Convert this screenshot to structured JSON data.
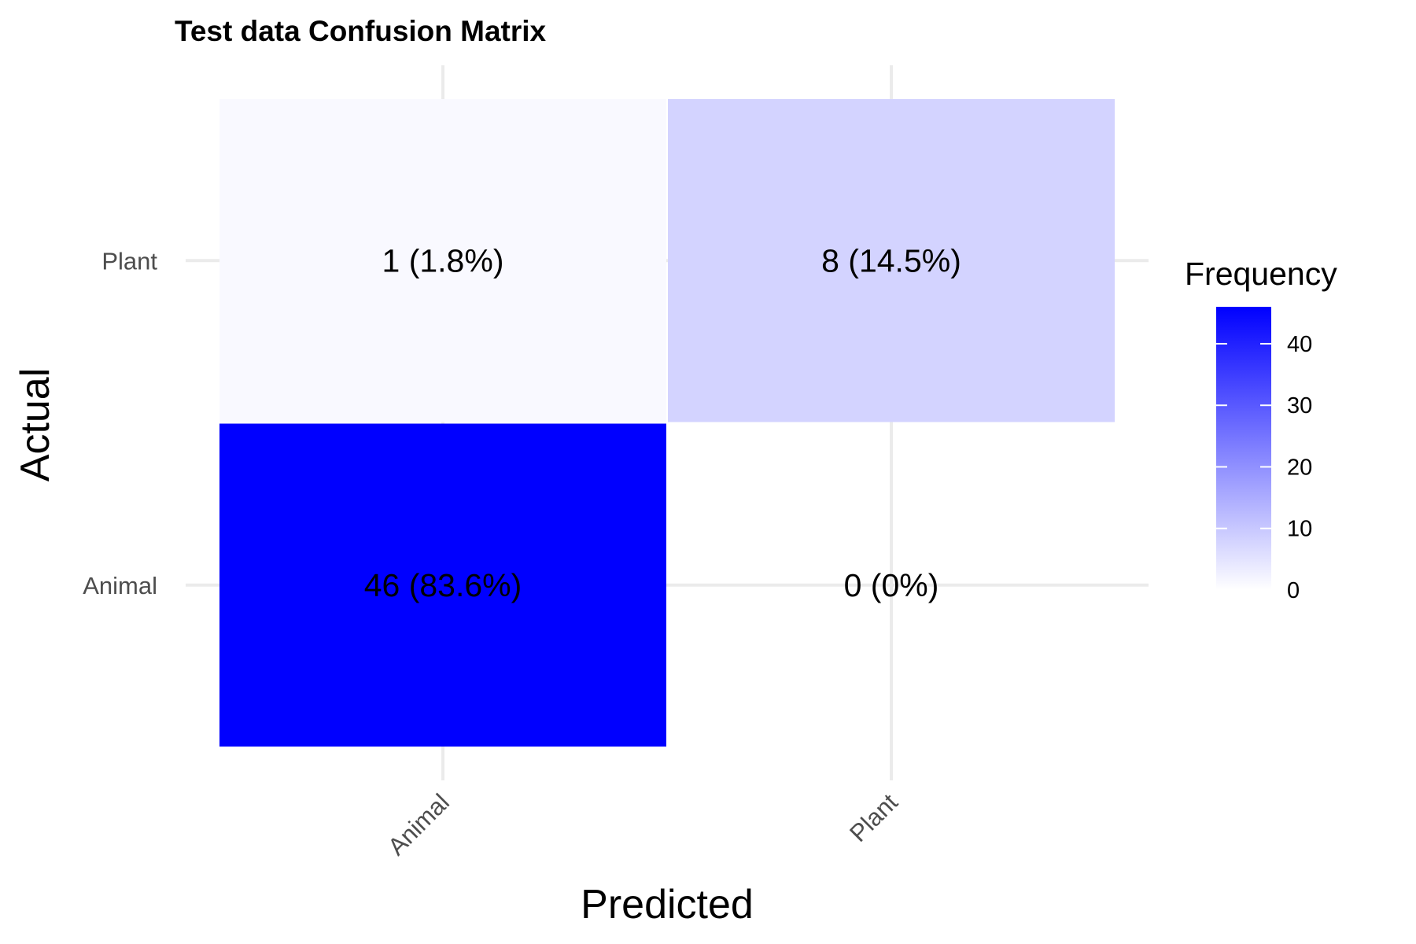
{
  "chart_data": {
    "type": "heatmap",
    "title": "Test data Confusion Matrix",
    "xlabel": "Predicted",
    "ylabel": "Actual",
    "x_categories": [
      "Animal",
      "Plant"
    ],
    "y_categories": [
      "Animal",
      "Plant"
    ],
    "cells": [
      {
        "actual": "Plant",
        "predicted": "Animal",
        "value": 1,
        "label": "1 (1.8%)"
      },
      {
        "actual": "Plant",
        "predicted": "Plant",
        "value": 8,
        "label": "8 (14.5%)"
      },
      {
        "actual": "Animal",
        "predicted": "Animal",
        "value": 46,
        "label": "46 (83.6%)"
      },
      {
        "actual": "Animal",
        "predicted": "Plant",
        "value": 0,
        "label": "0 (0%)"
      }
    ],
    "legend": {
      "title": "Frequency",
      "placement": "right",
      "ticks": [
        0,
        10,
        20,
        30,
        40
      ],
      "min": 0,
      "max": 46
    },
    "colors": {
      "low": "#ffffff",
      "high": "#0000ff"
    },
    "grid": true
  }
}
